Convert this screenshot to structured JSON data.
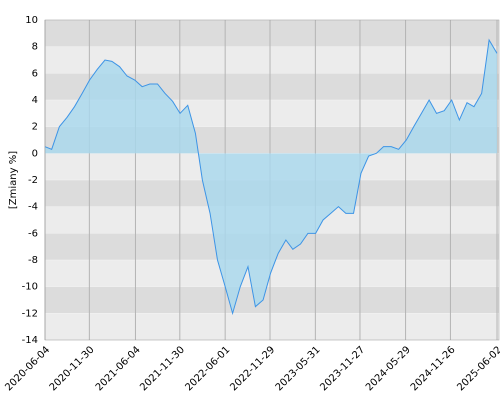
{
  "chart_data": {
    "type": "area",
    "y_label": "[Zmiany %]",
    "x": [
      "2020-06-04",
      "2020-07-01",
      "2020-08-01",
      "2020-09-01",
      "2020-10-01",
      "2020-11-01",
      "2020-12-01",
      "2021-01-01",
      "2021-02-01",
      "2021-03-01",
      "2021-04-01",
      "2021-05-01",
      "2021-06-01",
      "2021-07-01",
      "2021-08-01",
      "2021-09-01",
      "2021-10-01",
      "2021-11-01",
      "2021-12-01",
      "2022-01-01",
      "2022-02-01",
      "2022-03-01",
      "2022-04-01",
      "2022-05-01",
      "2022-06-01",
      "2022-07-01",
      "2022-08-01",
      "2022-09-01",
      "2022-10-01",
      "2022-11-01",
      "2022-12-01",
      "2023-01-01",
      "2023-02-01",
      "2023-03-01",
      "2023-04-01",
      "2023-05-01",
      "2023-06-01",
      "2023-07-01",
      "2023-08-01",
      "2023-09-01",
      "2023-10-01",
      "2023-11-01",
      "2023-12-01",
      "2024-01-01",
      "2024-02-01",
      "2024-03-01",
      "2024-04-01",
      "2024-05-01",
      "2024-06-01",
      "2024-07-01",
      "2024-08-01",
      "2024-09-01",
      "2024-10-01",
      "2024-11-01",
      "2024-12-01",
      "2025-01-01",
      "2025-02-01",
      "2025-03-01",
      "2025-04-01",
      "2025-05-01",
      "2025-06-02"
    ],
    "values": [
      0.5,
      0.3,
      2,
      2.7,
      3.5,
      4.5,
      5.5,
      6.3,
      7,
      6.9,
      6.5,
      5.8,
      5.5,
      5,
      5.2,
      5.2,
      4.5,
      3.9,
      3,
      3.6,
      1.5,
      -2,
      -4.5,
      -8,
      -10,
      -12,
      -10,
      -8.5,
      -11.5,
      -11,
      -9,
      -7.5,
      -6.5,
      -7.2,
      -6.8,
      -6,
      -6,
      -5,
      -4.5,
      -4,
      -4.5,
      -4.5,
      -1.5,
      -0.2,
      0,
      0.5,
      0.5,
      0.3,
      1,
      2,
      3,
      4,
      3,
      3.2,
      4,
      2.5,
      3.8,
      3.5,
      4.5,
      8.5,
      7.5
    ],
    "color": "#3d94e6",
    "fill_color": "#a8d8ee",
    "xlim": [
      "2020-06-04",
      "2025-06-10"
    ],
    "xticks": [
      "2020-06-04",
      "2020-11-30",
      "2021-06-04",
      "2021-11-30",
      "2022-06-01",
      "2022-11-29",
      "2023-05-31",
      "2023-11-27",
      "2024-05-29",
      "2024-11-26",
      "2025-06-02"
    ],
    "ylim": [
      -14,
      10
    ],
    "yticks": [
      -14,
      -12,
      -10,
      -8,
      -6,
      -4,
      -2,
      0,
      2,
      4,
      6,
      8,
      10
    ],
    "grid": true
  }
}
